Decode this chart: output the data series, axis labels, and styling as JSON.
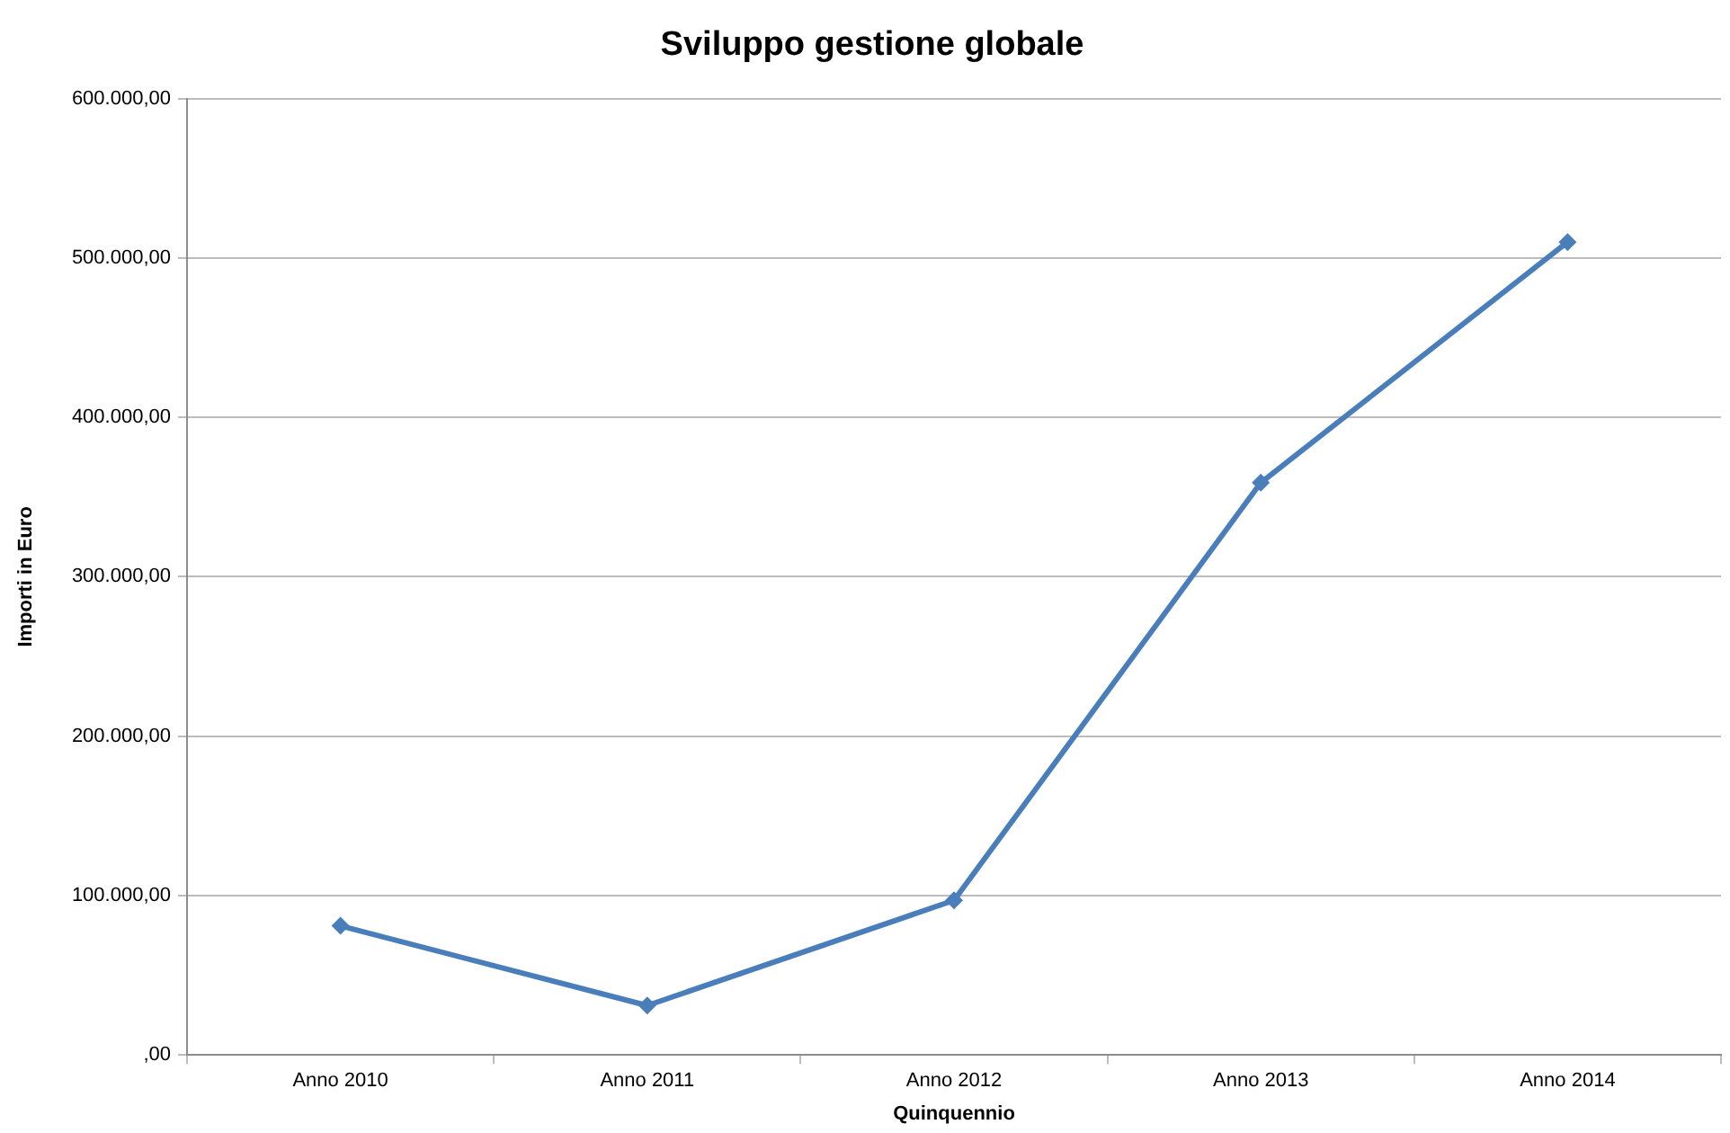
{
  "chart_data": {
    "type": "line",
    "title": "Sviluppo gestione globale",
    "xlabel": "Quinquennio",
    "ylabel": "Importi in Euro",
    "categories": [
      "Anno 2010",
      "Anno 2011",
      "Anno 2012",
      "Anno 2013",
      "Anno 2014"
    ],
    "series": [
      {
        "color": "#4a7ebb",
        "values": [
          81000,
          31000,
          97000,
          359000,
          510000
        ]
      }
    ],
    "ylim": [
      0,
      600000
    ],
    "yticks": [
      {
        "value": 0,
        "label": ",00"
      },
      {
        "value": 100000,
        "label": "100.000,00"
      },
      {
        "value": 200000,
        "label": "200.000,00"
      },
      {
        "value": 300000,
        "label": "300.000,00"
      },
      {
        "value": 400000,
        "label": "400.000,00"
      },
      {
        "value": 500000,
        "label": "500.000,00"
      },
      {
        "value": 600000,
        "label": "600.000,00"
      }
    ],
    "grid": "y",
    "marker": "diamond",
    "line_style": "solid"
  }
}
